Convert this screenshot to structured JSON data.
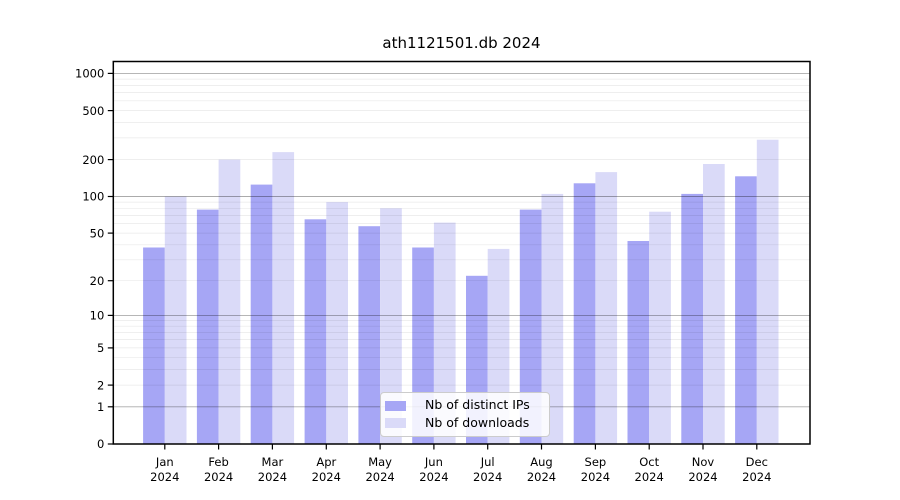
{
  "title": "ath1121501.db 2024",
  "chart_data": {
    "type": "bar",
    "title": "ath1121501.db 2024",
    "y_scale": "log10(value+1)",
    "grid": true,
    "legend_position": "bottom-center",
    "categories": [
      "Jan",
      "Feb",
      "Mar",
      "Apr",
      "May",
      "Jun",
      "Jul",
      "Aug",
      "Sep",
      "Oct",
      "Nov",
      "Dec"
    ],
    "x_tick_second_line": "2024",
    "series": [
      {
        "name": "Nb of distinct IPs",
        "color": "#a6a6f5",
        "values": [
          38,
          78,
          125,
          65,
          57,
          38,
          22,
          78,
          128,
          43,
          105,
          146
        ]
      },
      {
        "name": "Nb of downloads",
        "color": "#dadaf8",
        "values": [
          100,
          200,
          230,
          90,
          80,
          61,
          37,
          105,
          158,
          75,
          184,
          290
        ]
      }
    ],
    "yticks": [
      0,
      1,
      2,
      5,
      10,
      20,
      50,
      100,
      200,
      500,
      1000
    ],
    "ylim": [
      0,
      1200
    ],
    "xlabel": "",
    "ylabel": ""
  },
  "colors": {
    "background": "#ffffff",
    "axis": "#000000",
    "major_gridline": "rgba(0,0,0,0.33)",
    "minor_gridline": "rgba(0,0,0,0.085)",
    "bar_distinct_ips": "#a6a6f5",
    "bar_downloads": "#dadaf8"
  }
}
